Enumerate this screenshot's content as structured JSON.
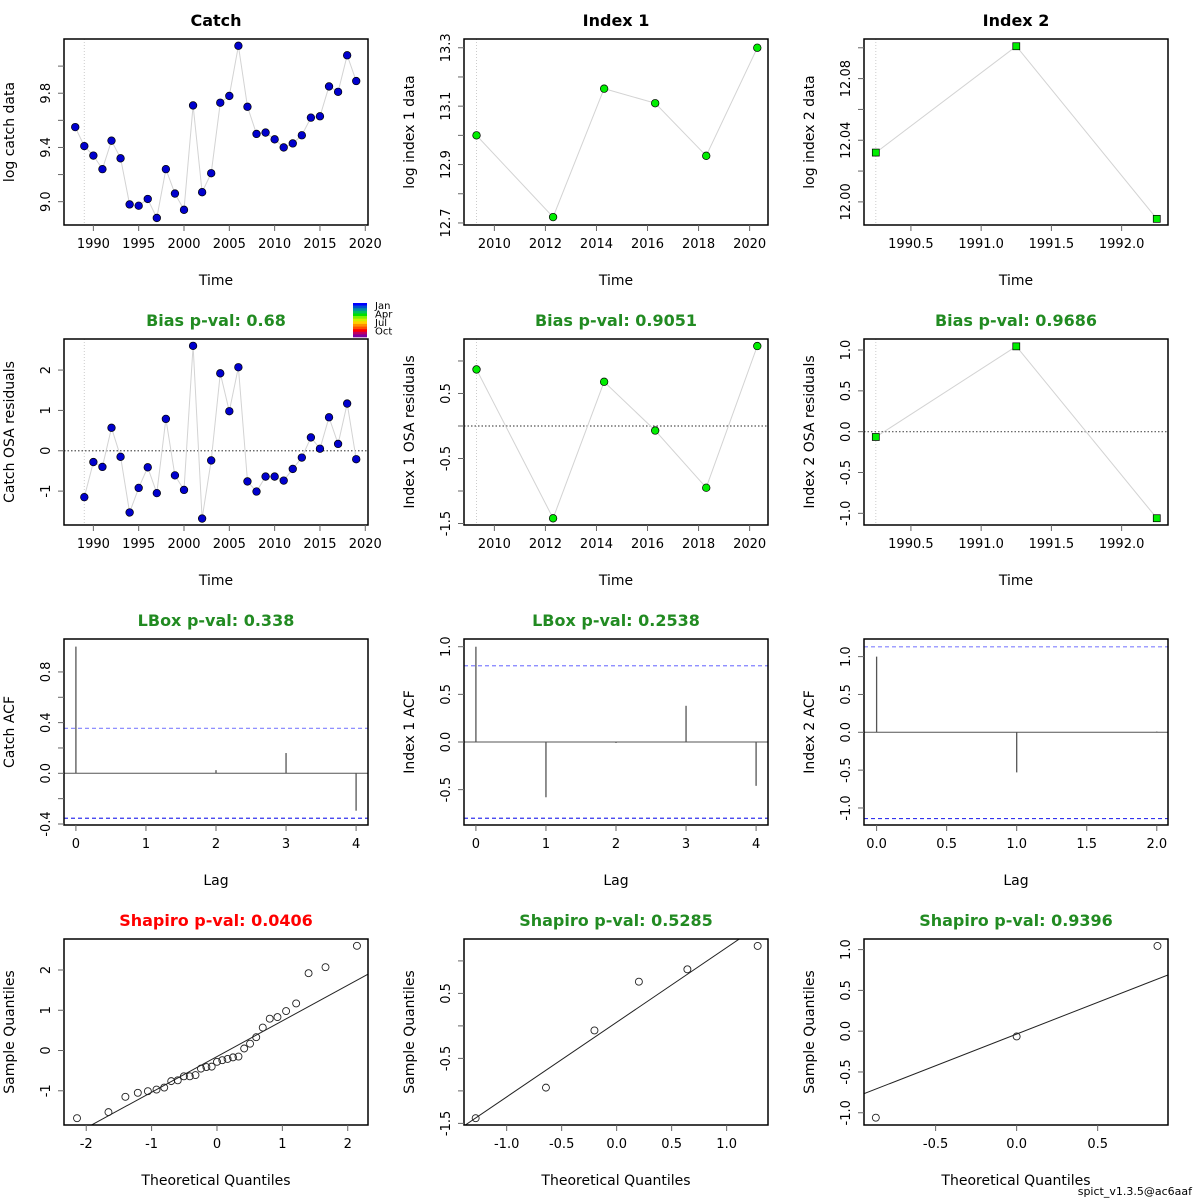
{
  "footer": "spict_v1.3.5@ac6aaf",
  "colors": {
    "good": "#228B22",
    "bad": "#FF0000",
    "title": "#000000",
    "catch_point": "#0000CD",
    "index_point": "#00EE00",
    "line": "#D3D3D3",
    "ci_upper": "#8080FF",
    "ci_lower": "#3333EE",
    "acf_bar": "#555555",
    "zero_line": "#555555"
  },
  "month_legend": {
    "labels": [
      "Jan",
      "Apr",
      "Jul",
      "Oct"
    ],
    "colors": [
      "#0000FF",
      "#0050D0",
      "#0090A0",
      "#00C060",
      "#00E000",
      "#80F000",
      "#D0F000",
      "#FFD000",
      "#FF9000",
      "#FF5000",
      "#FF0000",
      "#C00060",
      "#8000A0"
    ]
  },
  "chart_data": [
    {
      "id": "catch-data",
      "type": "line",
      "title": "Catch",
      "title_color": "title",
      "xlabel": "Time",
      "ylabel": "log catch data",
      "xlim": [
        1986.76,
        2020.3
      ],
      "ylim": [
        8.828,
        10.2
      ],
      "xticks": [
        1990,
        1995,
        2000,
        2005,
        2010,
        2015,
        2020
      ],
      "yticks": [
        9.0,
        9.2,
        9.4,
        9.6,
        9.8,
        10.0
      ],
      "yticklabels": [
        "9.0",
        "",
        "9.4",
        "",
        "9.8",
        ""
      ],
      "vline": 1989,
      "marker": "circle",
      "point_color": "catch_point",
      "x": [
        1988,
        1989,
        1990,
        1991,
        1992,
        1993,
        1994,
        1995,
        1996,
        1997,
        1998,
        1999,
        2000,
        2001,
        2002,
        2003,
        2004,
        2005,
        2006,
        2007,
        2008,
        2009,
        2010,
        2011,
        2012,
        2013,
        2014,
        2015,
        2016,
        2017,
        2018,
        2019
      ],
      "y": [
        9.55,
        9.41,
        9.34,
        9.24,
        9.45,
        9.32,
        8.98,
        8.97,
        9.02,
        8.88,
        9.24,
        9.06,
        8.94,
        9.71,
        9.07,
        9.21,
        9.73,
        9.78,
        10.15,
        9.7,
        9.5,
        9.51,
        9.46,
        9.4,
        9.43,
        9.49,
        9.62,
        9.63,
        9.85,
        9.81,
        10.08,
        9.89
      ]
    },
    {
      "id": "index1-data",
      "type": "line",
      "title": "Index 1",
      "title_color": "title",
      "xlabel": "Time",
      "ylabel": "log index 1 data",
      "xlim": [
        2008.81,
        2020.72
      ],
      "ylim": [
        12.693,
        13.33
      ],
      "xticks": [
        2010,
        2012,
        2014,
        2016,
        2018,
        2020
      ],
      "yticks": [
        12.7,
        12.8,
        12.9,
        13.0,
        13.1,
        13.2,
        13.3
      ],
      "yticklabels": [
        "12.7",
        "",
        "12.9",
        "",
        "13.1",
        "",
        "13.3"
      ],
      "vline": 2009.3,
      "marker": "circle",
      "point_color": "index_point",
      "x": [
        2009.3,
        2012.3,
        2014.3,
        2016.3,
        2018.3,
        2020.3
      ],
      "y": [
        13.0,
        12.72,
        13.16,
        13.11,
        12.93,
        13.3
      ]
    },
    {
      "id": "index2-data",
      "type": "line",
      "title": "Index 2",
      "title_color": "title",
      "xlabel": "Time",
      "ylabel": "log index 2 data",
      "xlim": [
        1990.166,
        1992.33
      ],
      "ylim": [
        11.985,
        12.1057
      ],
      "xticks": [
        1990.5,
        1991.0,
        1991.5,
        1992.0
      ],
      "xticklabels": [
        "1990.5",
        "1991.0",
        "1991.5",
        "1992.0"
      ],
      "yticks": [
        12.0,
        12.02,
        12.04,
        12.06,
        12.08,
        12.1
      ],
      "yticklabels": [
        "12.00",
        "",
        "12.04",
        "",
        "12.08",
        ""
      ],
      "vline": 1990.25,
      "marker": "square",
      "point_color": "index_point",
      "x": [
        1990.25,
        1991.25,
        1992.25
      ],
      "y": [
        12.032,
        12.101,
        11.989
      ]
    },
    {
      "id": "catch-residuals",
      "type": "line",
      "title": "Bias p-val: 0.68",
      "title_color": "good",
      "xlabel": "Time",
      "ylabel": "Catch OSA residuals",
      "xlim": [
        1986.76,
        2020.3
      ],
      "ylim": [
        -1.84,
        2.77
      ],
      "xticks": [
        1990,
        1995,
        2000,
        2005,
        2010,
        2015,
        2020
      ],
      "yticks": [
        -1,
        0,
        1,
        2
      ],
      "yticklabels": [
        "-1",
        "0",
        "1",
        "2"
      ],
      "vline": 1989,
      "hline": 0,
      "marker": "circle",
      "point_color": "catch_point",
      "month_legend": true,
      "x": [
        1989,
        1990,
        1991,
        1992,
        1993,
        1994,
        1995,
        1996,
        1997,
        1998,
        1999,
        2000,
        2001,
        2002,
        2003,
        2004,
        2005,
        2006,
        2007,
        2008,
        2009,
        2010,
        2011,
        2012,
        2013,
        2014,
        2015,
        2016,
        2017,
        2018,
        2019
      ],
      "y": [
        -1.15,
        -0.28,
        -0.4,
        0.57,
        -0.15,
        -1.53,
        -0.92,
        -0.41,
        -1.05,
        0.79,
        -0.61,
        -0.97,
        2.6,
        -1.68,
        -0.24,
        1.92,
        0.98,
        2.07,
        -0.76,
        -1.01,
        -0.64,
        -0.64,
        -0.74,
        -0.45,
        -0.17,
        0.33,
        0.05,
        0.83,
        0.17,
        1.17,
        -0.21
      ]
    },
    {
      "id": "index1-residuals",
      "type": "line",
      "title": "Bias p-val: 0.9051",
      "title_color": "good",
      "xlabel": "Time",
      "ylabel": "Index 1 OSA residuals",
      "xlim": [
        2008.81,
        2020.72
      ],
      "ylim": [
        -1.523,
        1.338
      ],
      "xticks": [
        2010,
        2012,
        2014,
        2016,
        2018,
        2020
      ],
      "yticks": [
        -1.5,
        -1.0,
        -0.5,
        0,
        0.5,
        1.0
      ],
      "yticklabels": [
        "-1.5",
        "",
        "-0.5",
        "",
        "0.5",
        ""
      ],
      "vline": 2009.3,
      "hline": 0,
      "marker": "circle",
      "point_color": "index_point",
      "x": [
        2009.3,
        2012.3,
        2014.3,
        2016.3,
        2018.3,
        2020.3
      ],
      "y": [
        0.87,
        -1.42,
        0.68,
        -0.07,
        -0.95,
        1.23
      ]
    },
    {
      "id": "index2-residuals",
      "type": "line",
      "title": "Bias p-val: 0.9686",
      "title_color": "good",
      "xlabel": "Time",
      "ylabel": "Index 2 OSA residuals",
      "xlim": [
        1990.166,
        1992.33
      ],
      "ylim": [
        -1.143,
        1.135
      ],
      "xticks": [
        1990.5,
        1991.0,
        1991.5,
        1992.0
      ],
      "xticklabels": [
        "1990.5",
        "1991.0",
        "1991.5",
        "1992.0"
      ],
      "yticks": [
        -1.0,
        -0.5,
        0.0,
        0.5,
        1.0
      ],
      "yticklabels": [
        "-1.0",
        "-0.5",
        "0.0",
        "0.5",
        "1.0"
      ],
      "vline": 1990.25,
      "hline": 0,
      "marker": "square",
      "point_color": "index_point",
      "x": [
        1990.25,
        1991.25,
        1992.25
      ],
      "y": [
        -0.065,
        1.045,
        -1.06
      ]
    },
    {
      "id": "catch-acf",
      "type": "bar",
      "subtype": "acf",
      "title": "LBox p-val: 0.338",
      "title_color": "good",
      "xlabel": "Lag",
      "ylabel": "Catch ACF",
      "xlim": [
        -0.17,
        4.17
      ],
      "ylim": [
        -0.408,
        1.06
      ],
      "xticks": [
        0,
        1,
        2,
        3,
        4
      ],
      "xticklabels": [
        "0",
        "1",
        "2",
        "3",
        "4"
      ],
      "yticks": [
        -0.4,
        -0.2,
        0.0,
        0.2,
        0.4,
        0.6,
        0.8
      ],
      "yticklabels": [
        "-0.4",
        "",
        "0.0",
        "",
        "0.4",
        "",
        "0.8"
      ],
      "lags": [
        0,
        1,
        2,
        3,
        4
      ],
      "acf": [
        1.0,
        0.0,
        0.025,
        0.16,
        -0.295
      ],
      "ci": [
        0.355,
        -0.355
      ]
    },
    {
      "id": "index1-acf",
      "type": "bar",
      "subtype": "acf",
      "title": "LBox p-val: 0.2538",
      "title_color": "good",
      "xlabel": "Lag",
      "ylabel": "Index 1 ACF",
      "xlim": [
        -0.17,
        4.17
      ],
      "ylim": [
        -0.871,
        1.081
      ],
      "xticks": [
        0,
        1,
        2,
        3,
        4
      ],
      "xticklabels": [
        "0",
        "1",
        "2",
        "3",
        "4"
      ],
      "yticks": [
        -0.5,
        0.0,
        0.5,
        1.0
      ],
      "yticklabels": [
        "-0.5",
        "0.0",
        "0.5",
        "1.0"
      ],
      "lags": [
        0,
        1,
        2,
        3,
        4
      ],
      "acf": [
        1.0,
        -0.58,
        -0.01,
        0.38,
        -0.46
      ],
      "ci": [
        0.8,
        -0.8
      ]
    },
    {
      "id": "index2-acf",
      "type": "bar",
      "subtype": "acf",
      "title": "",
      "title_color": "good",
      "xlabel": "Lag",
      "ylabel": "Index 2 ACF",
      "xlim": [
        -0.09,
        2.08
      ],
      "ylim": [
        -1.225,
        1.233
      ],
      "xticks": [
        0.0,
        0.5,
        1.0,
        1.5,
        2.0
      ],
      "xticklabels": [
        "0.0",
        "0.5",
        "1.0",
        "1.5",
        "2.0"
      ],
      "yticks": [
        -1.0,
        -0.5,
        0.0,
        0.5,
        1.0
      ],
      "yticklabels": [
        "-1.0",
        "-0.5",
        "0.0",
        "0.5",
        "1.0"
      ],
      "lags": [
        0,
        1,
        2
      ],
      "acf": [
        1.0,
        -0.53,
        0.01
      ],
      "ci": [
        1.13,
        -1.14
      ]
    },
    {
      "id": "catch-qq",
      "type": "scatter",
      "subtype": "qq",
      "title": "Shapiro p-val: 0.0406",
      "title_color": "bad",
      "xlabel": "Theoretical Quantiles",
      "ylabel": "Sample Quantiles",
      "xlim": [
        -2.34,
        2.31
      ],
      "ylim": [
        -1.85,
        2.77
      ],
      "xticks": [
        -2,
        -1,
        0,
        1,
        2
      ],
      "xticklabels": [
        "-2",
        "-1",
        "0",
        "1",
        "2"
      ],
      "yticks": [
        -1,
        0,
        1,
        2
      ],
      "yticklabels": [
        "-1",
        "0",
        "1",
        "2"
      ],
      "x": [
        -2.141,
        -1.66,
        -1.401,
        -1.211,
        -1.057,
        -0.925,
        -0.807,
        -0.7,
        -0.6,
        -0.506,
        -0.416,
        -0.329,
        -0.245,
        -0.162,
        -0.081,
        0.0,
        0.081,
        0.162,
        0.245,
        0.329,
        0.416,
        0.506,
        0.6,
        0.7,
        0.807,
        0.925,
        1.057,
        1.211,
        1.401,
        1.66,
        2.141
      ],
      "y": [
        -1.68,
        -1.53,
        -1.15,
        -1.05,
        -1.01,
        -0.97,
        -0.92,
        -0.76,
        -0.74,
        -0.64,
        -0.64,
        -0.61,
        -0.45,
        -0.41,
        -0.4,
        -0.28,
        -0.24,
        -0.21,
        -0.17,
        -0.15,
        0.05,
        0.17,
        0.33,
        0.57,
        0.79,
        0.83,
        0.98,
        1.17,
        1.92,
        2.07,
        2.6
      ],
      "qqline": {
        "intercept": -0.15,
        "slope": 0.886
      }
    },
    {
      "id": "index1-qq",
      "type": "scatter",
      "subtype": "qq",
      "title": "Shapiro p-val: 0.5285",
      "title_color": "good",
      "xlabel": "Theoretical Quantiles",
      "ylabel": "Sample Quantiles",
      "xlim": [
        -1.388,
        1.376
      ],
      "ylim": [
        -1.525,
        1.337
      ],
      "xticks": [
        -1.0,
        -0.5,
        0.0,
        0.5,
        1.0
      ],
      "xticklabels": [
        "-1.0",
        "-0.5",
        "0.0",
        "0.5",
        "1.0"
      ],
      "yticks": [
        -1.5,
        -1.0,
        -0.5,
        0,
        0.5,
        1.0
      ],
      "yticklabels": [
        "-1.5",
        "",
        "-0.5",
        "",
        "0.5",
        ""
      ],
      "x": [
        -1.282,
        -0.643,
        -0.202,
        0.202,
        0.643,
        1.282
      ],
      "y": [
        -1.42,
        -0.95,
        -0.07,
        0.68,
        0.87,
        1.23
      ],
      "qqline": {
        "intercept": 0.056,
        "slope": 1.149
      }
    },
    {
      "id": "index2-qq",
      "type": "scatter",
      "subtype": "qq",
      "title": "Shapiro p-val: 0.9396",
      "title_color": "good",
      "xlabel": "Theoretical Quantiles",
      "ylabel": "Sample Quantiles",
      "xlim": [
        -0.942,
        0.934
      ],
      "ylim": [
        -1.15,
        1.13
      ],
      "xticks": [
        -0.5,
        0.0,
        0.5
      ],
      "xticklabels": [
        "-0.5",
        "0.0",
        "0.5"
      ],
      "yticks": [
        -1.0,
        -0.5,
        0.0,
        0.5,
        1.0
      ],
      "yticklabels": [
        "-1.0",
        "-0.5",
        "0.0",
        "0.5",
        "1.0"
      ],
      "x": [
        -0.869,
        0.0,
        0.869
      ],
      "y": [
        -1.06,
        -0.065,
        1.045
      ],
      "qqline": {
        "intercept": -0.035,
        "slope": 0.776
      }
    }
  ]
}
